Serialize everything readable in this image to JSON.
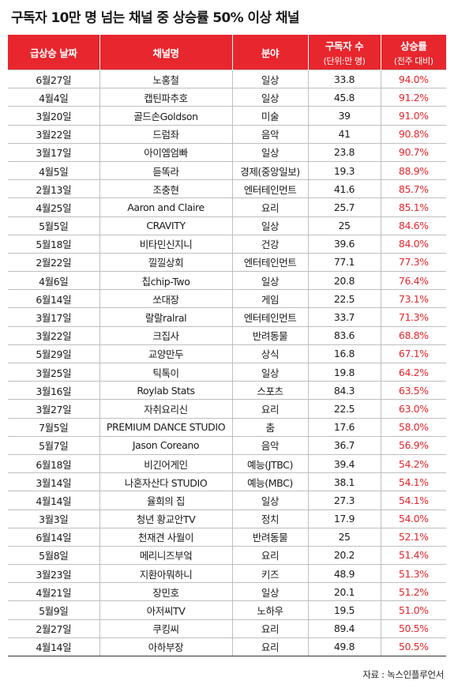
{
  "title": "구독자 10만 명 넘는 채널 중 상승률 50% 이상 채널",
  "headers": {
    "date": "급상승 날짜",
    "channel": "채널명",
    "category": "분야",
    "subscribers": "구독자 수",
    "subscribers_unit": "(단위:만 명)",
    "rate": "상승률",
    "rate_note": "(전주 대비)"
  },
  "rows": [
    {
      "date": "6월27일",
      "channel": "노홍철",
      "category": "일상",
      "subscribers": "33.8",
      "rate": "94.0%"
    },
    {
      "date": "4월4일",
      "channel": "캡틴파추호",
      "category": "일상",
      "subscribers": "45.8",
      "rate": "91.2%"
    },
    {
      "date": "3월20일",
      "channel": "골드손Goldson",
      "category": "미술",
      "subscribers": "39",
      "rate": "91.0%"
    },
    {
      "date": "3월22일",
      "channel": "드럼좌",
      "category": "음악",
      "subscribers": "41",
      "rate": "90.8%"
    },
    {
      "date": "3월17일",
      "channel": "아이엠엄빠",
      "category": "일상",
      "subscribers": "23.8",
      "rate": "90.7%"
    },
    {
      "date": "4월5일",
      "channel": "듣똑라",
      "category": "경제(중앙일보)",
      "subscribers": "19.3",
      "rate": "88.9%"
    },
    {
      "date": "2월13일",
      "channel": "조충현",
      "category": "엔터테인먼트",
      "subscribers": "41.6",
      "rate": "85.7%"
    },
    {
      "date": "4월25일",
      "channel": "Aaron and Claire",
      "category": "요리",
      "subscribers": "25.7",
      "rate": "85.1%"
    },
    {
      "date": "5월5일",
      "channel": "CRAVITY",
      "category": "일상",
      "subscribers": "25",
      "rate": "84.6%"
    },
    {
      "date": "5월18일",
      "channel": "비타민신지니",
      "category": "건강",
      "subscribers": "39.6",
      "rate": "84.0%"
    },
    {
      "date": "2월22일",
      "channel": "낄낄상회",
      "category": "엔터테인먼트",
      "subscribers": "77.1",
      "rate": "77.3%"
    },
    {
      "date": "4월6일",
      "channel": "칩chip-Two",
      "category": "일상",
      "subscribers": "20.8",
      "rate": "76.4%"
    },
    {
      "date": "6월14일",
      "channel": "쏘대장",
      "category": "게임",
      "subscribers": "22.5",
      "rate": "73.1%"
    },
    {
      "date": "3월17일",
      "channel": "랄랄ralral",
      "category": "엔터테인먼트",
      "subscribers": "33.7",
      "rate": "71.3%"
    },
    {
      "date": "3월22일",
      "channel": "크집사",
      "category": "반려동물",
      "subscribers": "83.6",
      "rate": "68.8%"
    },
    {
      "date": "5월29일",
      "channel": "교양만두",
      "category": "상식",
      "subscribers": "16.8",
      "rate": "67.1%"
    },
    {
      "date": "3월25일",
      "channel": "틱톡이",
      "category": "일상",
      "subscribers": "19.8",
      "rate": "64.2%"
    },
    {
      "date": "3월16일",
      "channel": "Roylab Stats",
      "category": "스포츠",
      "subscribers": "84.3",
      "rate": "63.5%"
    },
    {
      "date": "3월27일",
      "channel": "자취요리신",
      "category": "요리",
      "subscribers": "22.5",
      "rate": "63.0%"
    },
    {
      "date": "7월5일",
      "channel": "PREMIUM DANCE STUDIO",
      "category": "춤",
      "subscribers": "17.6",
      "rate": "58.0%"
    },
    {
      "date": "5월7일",
      "channel": "Jason Coreano",
      "category": "음악",
      "subscribers": "36.7",
      "rate": "56.9%"
    },
    {
      "date": "6월18일",
      "channel": "비긴어게인",
      "category": "예능(JTBC)",
      "subscribers": "39.4",
      "rate": "54.2%"
    },
    {
      "date": "3월14일",
      "channel": "나혼자산다 STUDIO",
      "category": "예능(MBC)",
      "subscribers": "38.1",
      "rate": "54.1%"
    },
    {
      "date": "4월14일",
      "channel": "율희의 집",
      "category": "일상",
      "subscribers": "27.3",
      "rate": "54.1%"
    },
    {
      "date": "3월3일",
      "channel": "청년 황교안TV",
      "category": "정치",
      "subscribers": "17.9",
      "rate": "54.0%"
    },
    {
      "date": "6월14일",
      "channel": "천재견 사월이",
      "category": "반려동물",
      "subscribers": "25",
      "rate": "52.1%"
    },
    {
      "date": "5월8일",
      "channel": "메리니즈부엌",
      "category": "요리",
      "subscribers": "20.2",
      "rate": "51.4%"
    },
    {
      "date": "3월23일",
      "channel": "지환아뭐하니",
      "category": "키즈",
      "subscribers": "48.9",
      "rate": "51.3%"
    },
    {
      "date": "4월21일",
      "channel": "장민호",
      "category": "일상",
      "subscribers": "20.1",
      "rate": "51.2%"
    },
    {
      "date": "5월9일",
      "channel": "아저씨TV",
      "category": "노하우",
      "subscribers": "19.5",
      "rate": "51.0%"
    },
    {
      "date": "2월27일",
      "channel": "쿠킹씨",
      "category": "요리",
      "subscribers": "89.4",
      "rate": "50.5%"
    },
    {
      "date": "4월14일",
      "channel": "아하부장",
      "category": "요리",
      "subscribers": "49.8",
      "rate": "50.5%"
    }
  ],
  "source": "자료 : 녹스인플루언서",
  "colors": {
    "accent": "#e8262d",
    "text": "#1a1a1a",
    "grid": "#bfbfbf"
  }
}
